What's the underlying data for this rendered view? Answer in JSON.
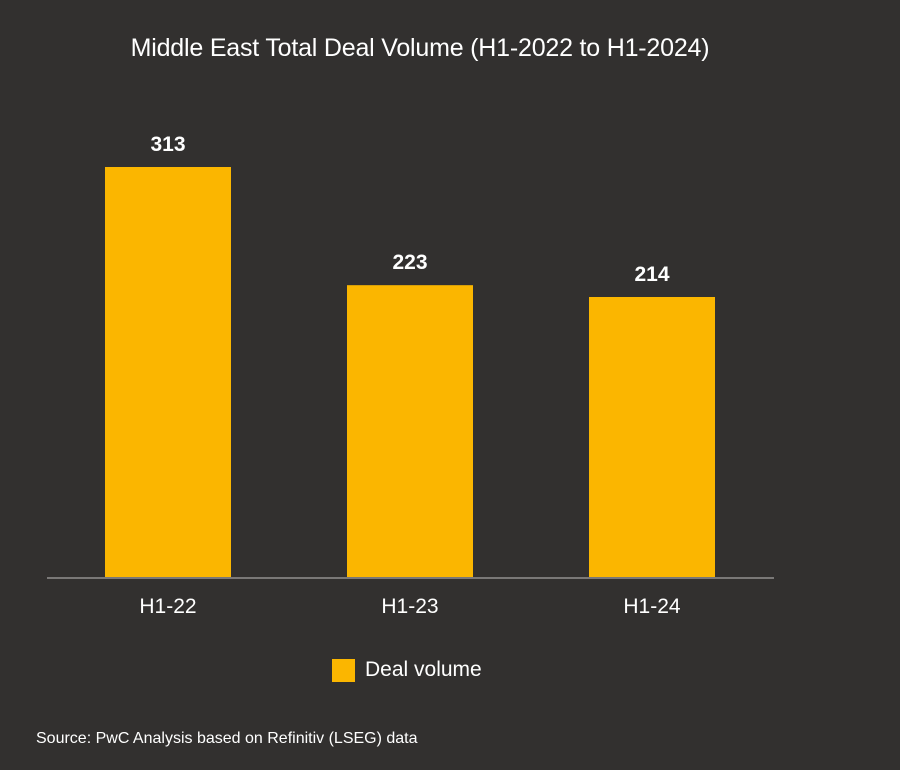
{
  "chart_data": {
    "type": "bar",
    "title": "Middle East Total Deal Volume (H1-2022 to H1-2024)",
    "categories": [
      "H1-22",
      "H1-23",
      "H1-24"
    ],
    "series": [
      {
        "name": "Deal volume",
        "values": [
          313,
          223,
          214
        ]
      }
    ],
    "data_labels": [
      "313",
      "223",
      "214"
    ],
    "ylim": [
      0,
      313
    ],
    "grid": false,
    "legend": {
      "position": "bottom-center",
      "entries": [
        "Deal volume"
      ]
    },
    "colors": {
      "background": "#32302f",
      "bar": "#fbb600",
      "axis": "#7a7877",
      "text": "#ffffff"
    }
  },
  "source": "Source: PwC Analysis based on Refinitiv (LSEG) data"
}
